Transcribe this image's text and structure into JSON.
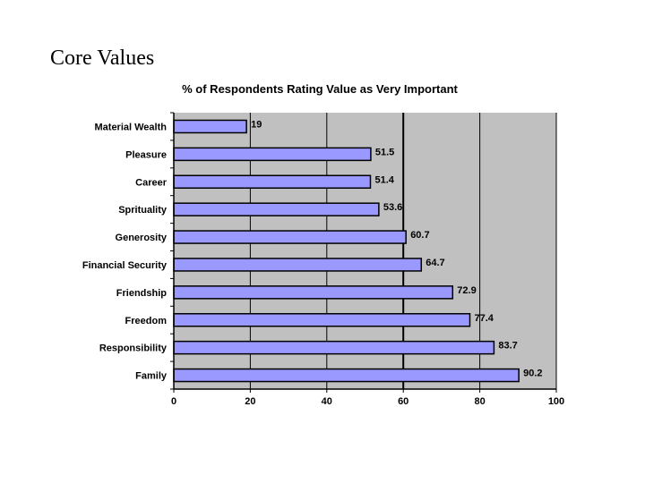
{
  "slide": {
    "title": "Core Values"
  },
  "chart_data": {
    "type": "bar",
    "orientation": "horizontal",
    "title": "% of Respondents Rating Value as Very Important",
    "xlabel": "",
    "ylabel": "",
    "categories": [
      "Material Wealth",
      "Pleasure",
      "Career",
      "Sprituality",
      "Generosity",
      "Financial Security",
      "Friendship",
      "Freedom",
      "Responsibility",
      "Family"
    ],
    "values": [
      19,
      51.5,
      51.4,
      53.6,
      60.7,
      64.7,
      72.9,
      77.4,
      83.7,
      90.2
    ],
    "value_labels": [
      "19",
      "51.5",
      "51.4",
      "53.6",
      "60.7",
      "64.7",
      "72.9",
      "77.4",
      "83.7",
      "90.2"
    ],
    "xlim": [
      0,
      100
    ],
    "xticks": [
      0,
      20,
      40,
      60,
      80,
      100
    ],
    "xtick_labels": [
      "0",
      "20",
      "40",
      "60",
      "80",
      "100"
    ],
    "grid": true,
    "legend": "none",
    "colors": {
      "bar_fill": "#9999ff",
      "bar_stroke": "#000000",
      "plot_background": "#c0c0c0",
      "gridline": "#000000"
    }
  }
}
